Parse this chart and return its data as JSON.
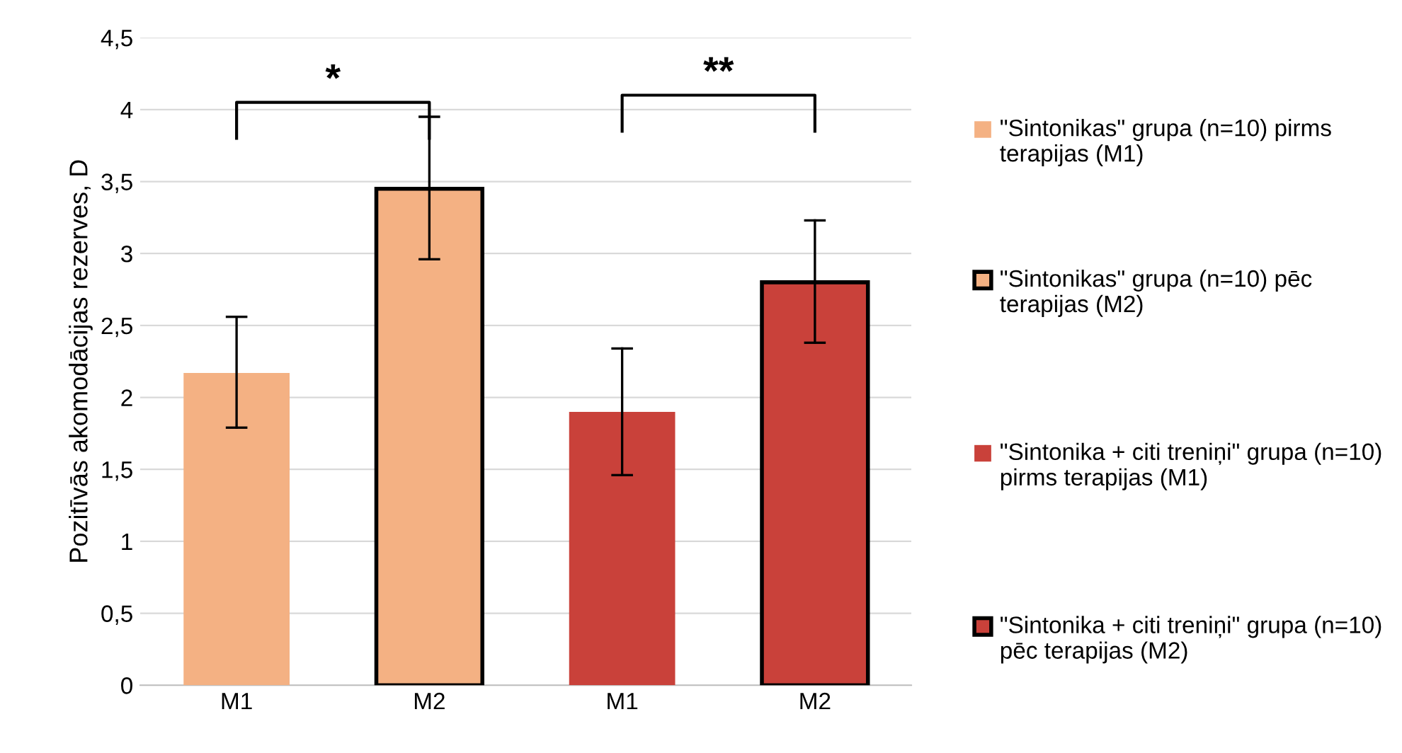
{
  "chart_data": {
    "type": "bar",
    "ylabel": "Pozitīvās akomodācijas rezerves, D",
    "categories": [
      "M1",
      "M2",
      "M1",
      "M2"
    ],
    "series": [
      {
        "name": "\"Sintonikas\" grupa (n=10) pirms terapijas (M1)",
        "color": "#f4b183",
        "values": [
          2.17,
          null,
          null,
          null
        ],
        "errors": [
          [
            1.79,
            2.56
          ],
          null,
          null,
          null
        ]
      },
      {
        "name": "\"Sintonikas\" grupa (n=10) pēc terapijas (M2)",
        "color": "#f4b183",
        "values": [
          null,
          3.45,
          null,
          null
        ],
        "errors": [
          null,
          [
            2.96,
            3.95
          ],
          null,
          null
        ]
      },
      {
        "name": "\"Sintonika + citi treniņi\" grupa (n=10) pirms terapijas (M1)",
        "color": "#c9413a",
        "values": [
          null,
          null,
          1.9,
          null
        ],
        "errors": [
          null,
          null,
          [
            1.46,
            2.34
          ],
          null
        ]
      },
      {
        "name": "\"Sintonika + citi treniņi\" grupa (n=10) pēc terapijas (M2)",
        "color": "#c9413a",
        "values": [
          null,
          null,
          null,
          2.8
        ],
        "errors": [
          null,
          null,
          null,
          [
            2.38,
            3.23
          ]
        ]
      }
    ],
    "ylim": [
      0,
      4.5
    ],
    "yticks": [
      0,
      {
        "value": 0.5,
        "label": "0,5"
      },
      1,
      {
        "value": 1.5,
        "label": "1,5"
      },
      2,
      {
        "value": 2.5,
        "label": "2,5"
      },
      3,
      {
        "value": 3.5,
        "label": "3,5"
      },
      4,
      {
        "value": 4.5,
        "label": "4,5"
      }
    ],
    "grid": "y",
    "legend": "right",
    "annotations": [
      "*",
      "**"
    ]
  }
}
